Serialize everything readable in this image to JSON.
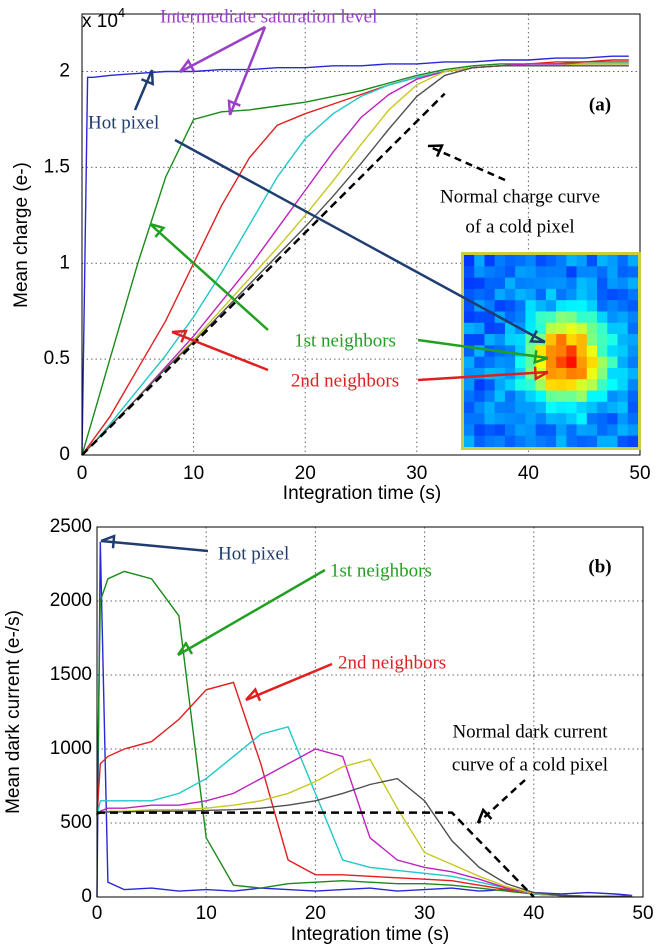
{
  "chart_data": [
    {
      "type": "line",
      "y_scale_label": "x 10",
      "y_scale_exponent": "4",
      "x_label": "Integration time (s)",
      "y_label": "Mean charge (e-)",
      "xlim": [
        0,
        50
      ],
      "xticks": [
        0,
        10,
        20,
        30,
        40,
        50
      ],
      "ylim": [
        0,
        2.3
      ],
      "yticks": [
        0,
        0.5,
        1,
        1.5,
        2
      ],
      "grid": true,
      "x": [
        0,
        0.5,
        1,
        2.5,
        5,
        7.5,
        10,
        12.5,
        15,
        17.5,
        20,
        22.5,
        25,
        27.5,
        30,
        32.5,
        35,
        37.5,
        40,
        42.5,
        45,
        47.5,
        49
      ],
      "series": [
        {
          "color": "#2828d8",
          "values": [
            0,
            1.97,
            1.97,
            1.98,
            1.99,
            2.0,
            2.0,
            2.01,
            2.01,
            2.02,
            2.02,
            2.03,
            2.03,
            2.04,
            2.04,
            2.05,
            2.05,
            2.06,
            2.06,
            2.07,
            2.07,
            2.08,
            2.08
          ]
        },
        {
          "color": "#1a8a1a",
          "values": [
            0,
            0.1,
            0.2,
            0.5,
            1.0,
            1.45,
            1.75,
            1.79,
            1.8,
            1.82,
            1.84,
            1.87,
            1.9,
            1.94,
            1.98,
            2.01,
            2.03,
            2.04,
            2.04,
            2.04,
            2.05,
            2.05,
            2.05
          ]
        },
        {
          "color": "#e02020",
          "values": [
            0,
            0.04,
            0.08,
            0.2,
            0.45,
            0.7,
            1.0,
            1.3,
            1.55,
            1.72,
            1.78,
            1.83,
            1.88,
            1.93,
            1.97,
            2.0,
            2.02,
            2.03,
            2.04,
            2.05,
            2.05,
            2.06,
            2.06
          ]
        },
        {
          "color": "#20c8c8",
          "values": [
            0,
            0.03,
            0.06,
            0.16,
            0.34,
            0.52,
            0.72,
            0.95,
            1.2,
            1.45,
            1.65,
            1.78,
            1.87,
            1.93,
            1.97,
            2.0,
            2.02,
            2.03,
            2.04,
            2.04,
            2.04,
            2.04,
            2.04
          ]
        },
        {
          "color": "#c020c0",
          "values": [
            0,
            0.03,
            0.06,
            0.15,
            0.3,
            0.46,
            0.62,
            0.8,
            0.98,
            1.18,
            1.38,
            1.58,
            1.76,
            1.88,
            1.96,
            2.0,
            2.02,
            2.03,
            2.04,
            2.04,
            2.04,
            2.04,
            2.04
          ]
        },
        {
          "color": "#c8c820",
          "values": [
            0,
            0.03,
            0.06,
            0.15,
            0.3,
            0.45,
            0.6,
            0.76,
            0.92,
            1.08,
            1.25,
            1.43,
            1.62,
            1.8,
            1.93,
            2.0,
            2.02,
            2.03,
            2.03,
            2.03,
            2.04,
            2.04,
            2.04
          ]
        },
        {
          "color": "#505050",
          "values": [
            0,
            0.03,
            0.06,
            0.15,
            0.3,
            0.45,
            0.59,
            0.74,
            0.89,
            1.04,
            1.19,
            1.35,
            1.52,
            1.7,
            1.87,
            1.98,
            2.02,
            2.03,
            2.03,
            2.03,
            2.03,
            2.03,
            2.03
          ]
        },
        {
          "color": "#000000",
          "dash": true,
          "values": [
            0,
            0.029,
            0.058,
            0.145,
            0.29,
            0.435,
            0.58,
            0.725,
            0.87,
            1.015,
            1.16,
            1.305,
            1.45,
            1.595,
            1.74,
            1.885,
            null,
            null,
            null,
            null,
            null,
            null,
            null
          ]
        }
      ],
      "annotations": [
        {
          "text": "Intermediate saturation level",
          "color": "#9a40c8"
        },
        {
          "text": "Hot pixel",
          "color": "#1f3d70"
        },
        {
          "text": "(a)",
          "color": "#000000"
        },
        {
          "text": "Normal charge curve",
          "color": "#000000"
        },
        {
          "text": "of a cold pixel",
          "color": "#000000"
        },
        {
          "text": "1st neighbors",
          "color": "#22a022"
        },
        {
          "text": "2nd neighbors",
          "color": "#e02020"
        }
      ]
    },
    {
      "type": "line",
      "x_label": "Integration time (s)",
      "y_label": "Mean dark current (e-/s)",
      "xlim": [
        0,
        50
      ],
      "xticks": [
        0,
        10,
        20,
        30,
        40,
        50
      ],
      "ylim": [
        0,
        2500
      ],
      "yticks": [
        0,
        500,
        1000,
        1500,
        2000,
        2500
      ],
      "grid": true,
      "x": [
        0,
        0.3,
        1,
        2.5,
        5,
        7.5,
        10,
        12.5,
        15,
        17.5,
        20,
        22.5,
        25,
        27.5,
        30,
        32.5,
        35,
        37.5,
        40,
        42.5,
        45,
        47.5,
        49
      ],
      "series": [
        {
          "color": "#2828d8",
          "values": [
            0,
            2400,
            100,
            50,
            60,
            40,
            50,
            40,
            60,
            50,
            40,
            50,
            60,
            40,
            50,
            60,
            40,
            50,
            30,
            20,
            30,
            20,
            10
          ]
        },
        {
          "color": "#1a8a1a",
          "values": [
            550,
            2000,
            2150,
            2200,
            2150,
            1900,
            400,
            80,
            60,
            90,
            100,
            110,
            100,
            90,
            90,
            80,
            60,
            40,
            20,
            10,
            5,
            5,
            5
          ]
        },
        {
          "color": "#e02020",
          "values": [
            550,
            900,
            950,
            1000,
            1050,
            1200,
            1400,
            1450,
            900,
            250,
            150,
            150,
            140,
            130,
            120,
            110,
            80,
            50,
            20,
            10,
            5,
            5,
            5
          ]
        },
        {
          "color": "#20c8c8",
          "values": [
            550,
            650,
            650,
            650,
            650,
            700,
            800,
            950,
            1100,
            1150,
            700,
            250,
            200,
            180,
            160,
            140,
            100,
            60,
            20,
            10,
            5,
            5,
            5
          ]
        },
        {
          "color": "#c020c0",
          "values": [
            550,
            580,
            600,
            600,
            620,
            620,
            650,
            700,
            800,
            900,
            1000,
            950,
            400,
            250,
            200,
            170,
            120,
            60,
            25,
            10,
            5,
            5,
            5
          ]
        },
        {
          "color": "#c8c820",
          "values": [
            550,
            570,
            580,
            580,
            590,
            590,
            600,
            620,
            650,
            700,
            780,
            880,
            930,
            600,
            300,
            220,
            140,
            70,
            25,
            10,
            5,
            5,
            5
          ]
        },
        {
          "color": "#505050",
          "values": [
            550,
            570,
            575,
            575,
            580,
            580,
            585,
            590,
            600,
            620,
            650,
            700,
            760,
            800,
            650,
            380,
            200,
            90,
            30,
            10,
            5,
            5,
            5
          ]
        },
        {
          "color": "#000000",
          "dash": true,
          "values": [
            570,
            570,
            570,
            570,
            570,
            570,
            570,
            570,
            570,
            570,
            570,
            570,
            570,
            570,
            570,
            570,
            380,
            190,
            0,
            null,
            null,
            null,
            null
          ]
        }
      ],
      "annotations": [
        {
          "text": "Hot pixel",
          "color": "#1f3d70"
        },
        {
          "text": "(b)",
          "color": "#000000"
        },
        {
          "text": "1st neighbors",
          "color": "#22a022"
        },
        {
          "text": "2nd neighbors",
          "color": "#e02020"
        },
        {
          "text": "Normal dark current",
          "color": "#000000"
        },
        {
          "text": "curve of a cold pixel",
          "color": "#000000"
        }
      ]
    }
  ]
}
